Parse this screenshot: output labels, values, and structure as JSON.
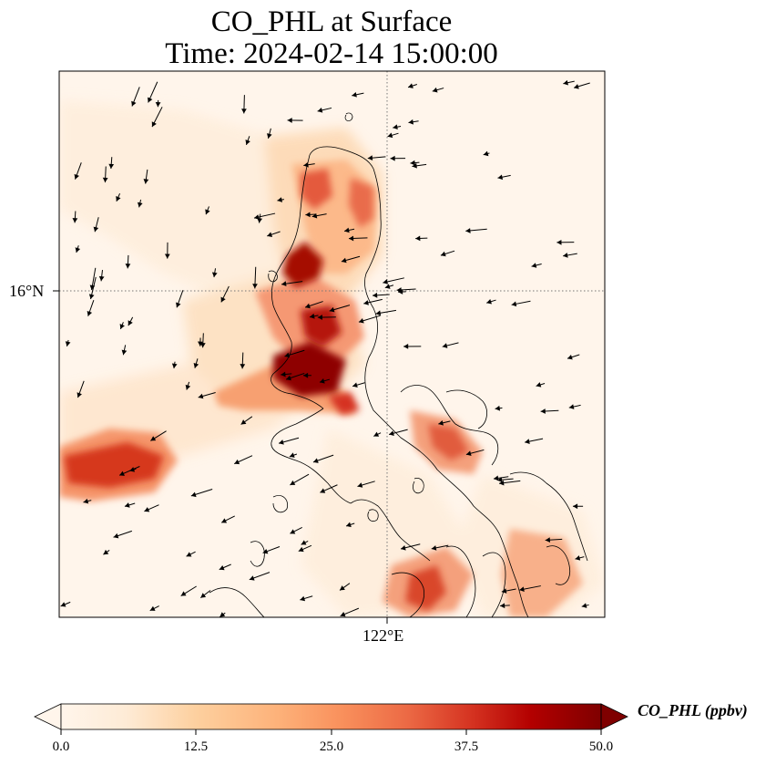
{
  "title": {
    "line1": "CO_PHL at Surface",
    "line2": "Time: 2024-02-14 15:00:00"
  },
  "axes": {
    "lat_tick_label": "16°N",
    "lon_tick_label": "122°E"
  },
  "colorbar": {
    "label": "CO_PHL (ppbv)",
    "ticks": [
      "0.0",
      "12.5",
      "25.0",
      "37.5",
      "50.0"
    ],
    "min": 0,
    "max": 50,
    "extend": "both",
    "colormap": [
      "#fff5eb",
      "#fee6ce",
      "#fdd0a2",
      "#fdae6b",
      "#fd8d3c",
      "#f16913",
      "#d94801",
      "#b30000",
      "#7f0000"
    ]
  },
  "map": {
    "gridlines": "dotted",
    "coastlines": true,
    "wind_vectors": true
  }
}
